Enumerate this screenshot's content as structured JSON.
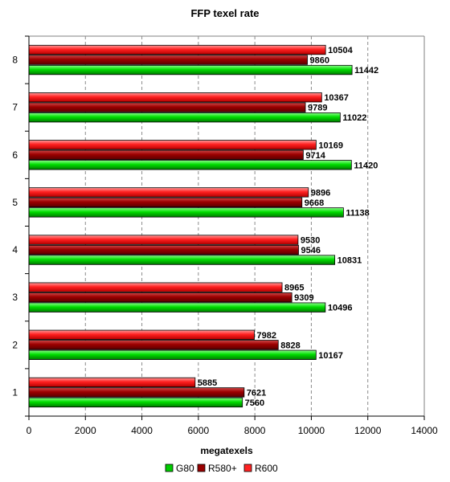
{
  "chart_data": {
    "type": "bar",
    "orientation": "horizontal",
    "title": "FFP texel rate",
    "xlabel": "megatexels",
    "ylabel": "",
    "xlim": [
      0,
      14000
    ],
    "x_ticks": [
      0,
      2000,
      4000,
      6000,
      8000,
      10000,
      12000,
      14000
    ],
    "grid": "vertical dashed",
    "legend_position": "bottom",
    "categories": [
      "1",
      "2",
      "3",
      "4",
      "5",
      "6",
      "7",
      "8"
    ],
    "series": [
      {
        "name": "G80",
        "color": "#00cc00",
        "values": [
          7560,
          10167,
          10496,
          10831,
          11138,
          11420,
          11022,
          11442
        ]
      },
      {
        "name": "R580+",
        "color": "#990000",
        "values": [
          7621,
          8828,
          9309,
          9546,
          9668,
          9714,
          9789,
          9860
        ]
      },
      {
        "name": "R600",
        "color": "#ff2222",
        "values": [
          5885,
          7982,
          8965,
          9530,
          9896,
          10169,
          10367,
          10504
        ]
      }
    ]
  }
}
